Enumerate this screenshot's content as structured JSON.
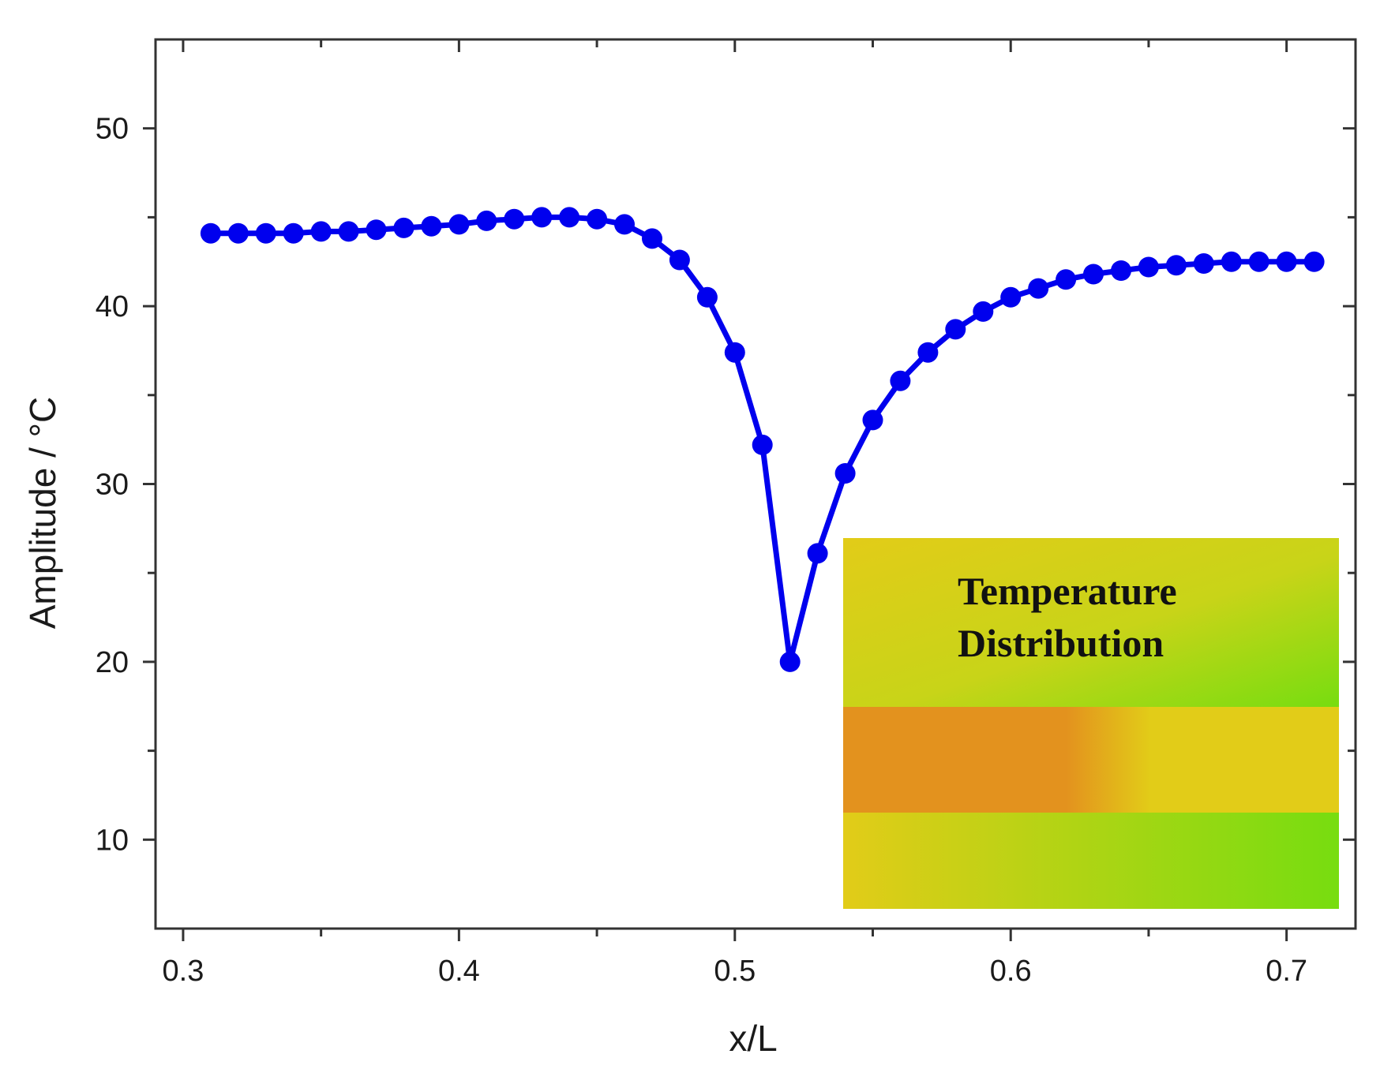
{
  "chart_data": {
    "type": "line",
    "title": "",
    "xlabel": "x/L",
    "ylabel": "Amplitude / °C",
    "xlim": [
      0.29,
      0.725
    ],
    "ylim": [
      5,
      55
    ],
    "x_ticks": [
      0.3,
      0.4,
      0.5,
      0.6,
      0.7
    ],
    "x_tick_labels": [
      "0.3",
      "0.4",
      "0.5",
      "0.6",
      "0.7"
    ],
    "y_ticks": [
      10,
      20,
      30,
      40,
      50
    ],
    "y_tick_labels": [
      "10",
      "20",
      "30",
      "40",
      "50"
    ],
    "grid": false,
    "series": [
      {
        "color": "#0000ee",
        "marker": "circle",
        "x": [
          0.31,
          0.32,
          0.33,
          0.34,
          0.35,
          0.36,
          0.37,
          0.38,
          0.39,
          0.4,
          0.41,
          0.42,
          0.43,
          0.44,
          0.45,
          0.46,
          0.47,
          0.48,
          0.49,
          0.5,
          0.51,
          0.52,
          0.53,
          0.54,
          0.55,
          0.56,
          0.57,
          0.58,
          0.59,
          0.6,
          0.61,
          0.62,
          0.63,
          0.64,
          0.65,
          0.66,
          0.67,
          0.68,
          0.69,
          0.7,
          0.71
        ],
        "y": [
          44.1,
          44.1,
          44.1,
          44.1,
          44.2,
          44.2,
          44.3,
          44.4,
          44.5,
          44.6,
          44.8,
          44.9,
          45.0,
          45.0,
          44.9,
          44.6,
          43.8,
          42.6,
          40.5,
          37.4,
          32.2,
          20.0,
          26.1,
          30.6,
          33.6,
          35.8,
          37.4,
          38.7,
          39.7,
          40.5,
          41.0,
          41.5,
          41.8,
          42.0,
          42.2,
          42.3,
          42.4,
          42.5,
          42.5,
          42.5,
          42.5
        ]
      }
    ],
    "inset": {
      "title_lines": [
        "Temperature",
        "Distribution"
      ],
      "colors": {
        "green": "#77dd10",
        "yellow": "#e2cc18",
        "orange": "#e3921e",
        "mid": "#c8d418"
      }
    }
  }
}
